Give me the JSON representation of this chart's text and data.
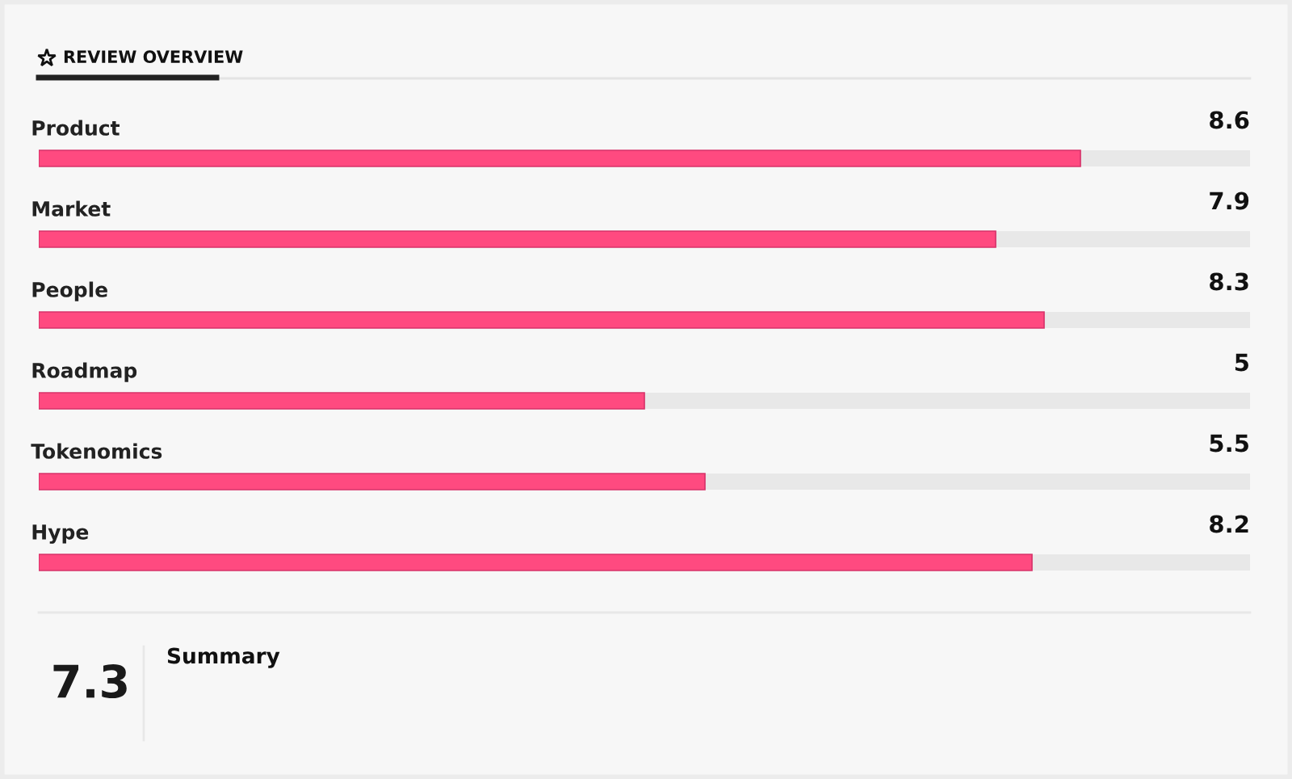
{
  "chart_data": {
    "type": "bar",
    "orientation": "horizontal",
    "title": "REVIEW OVERVIEW",
    "categories": [
      "Product",
      "Market",
      "People",
      "Roadmap",
      "Tokenomics",
      "Hype"
    ],
    "values": [
      8.6,
      7.9,
      8.3,
      5,
      5.5,
      8.2
    ],
    "color": "#ff4a80",
    "xlim": [
      0,
      10
    ],
    "tick_labels": "y",
    "data_labels": true,
    "annotations": [
      "7.3",
      "Summary"
    ]
  }
}
